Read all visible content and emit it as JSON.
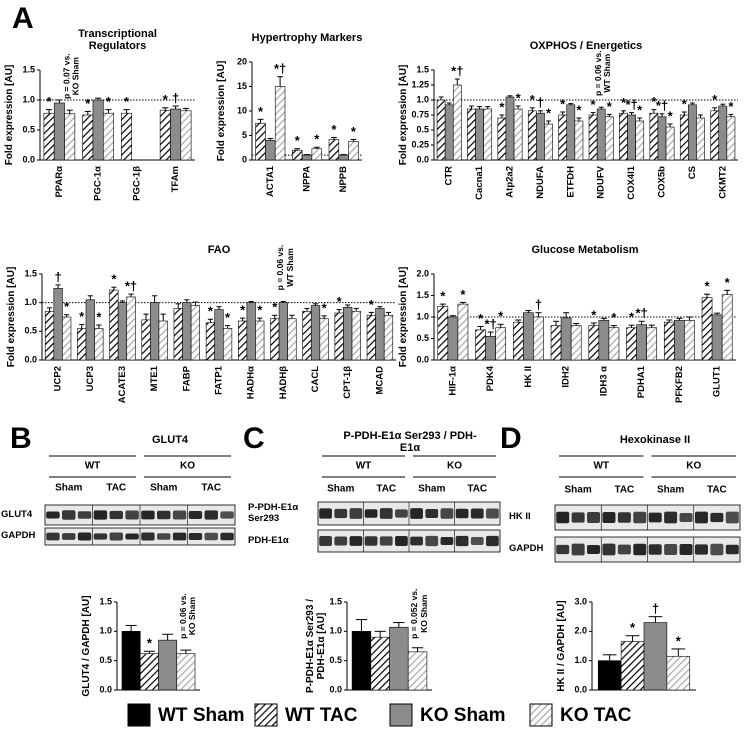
{
  "panels": [
    "A",
    "B",
    "C",
    "D"
  ],
  "legend": [
    {
      "name": "WT Sham",
      "color": "#000000",
      "hatch": false
    },
    {
      "name": "WT TAC",
      "color": "#000000",
      "hatch": true
    },
    {
      "name": "KO Sham",
      "color": "#8c8c8c",
      "hatch": false
    },
    {
      "name": "KO TAC",
      "color": "#a8a8a8",
      "hatch": true
    }
  ],
  "blots": [
    {
      "title": "GLUT4",
      "groups": [
        "WT",
        "KO"
      ],
      "conditions": [
        "Sham",
        "TAC",
        "Sham",
        "TAC"
      ],
      "rows": [
        "GLUT4",
        "GAPDH"
      ]
    },
    {
      "title": "P-PDH-E1α Ser293 / PDH-E1α",
      "groups": [
        "WT",
        "KO"
      ],
      "conditions": [
        "Sham",
        "TAC",
        "Sham",
        "TAC"
      ],
      "rows": [
        "P-PDH-E1α Ser293",
        "PDH-E1α"
      ]
    },
    {
      "title": "Hexokinase II",
      "groups": [
        "WT",
        "KO"
      ],
      "conditions": [
        "Sham",
        "TAC",
        "Sham",
        "TAC"
      ],
      "rows": [
        "HK II",
        "GAPDH"
      ]
    }
  ],
  "chart_data": [
    {
      "type": "bar",
      "title": "Transcriptional Regulators",
      "ylabel": "Fold expression [AU]",
      "categories": [
        "PPARα",
        "PGC-1α",
        "PGC-1β",
        "TFAm"
      ],
      "ylim": [
        0,
        1.5
      ],
      "yticks": [
        {
          "value": 0,
          "label": "0.0"
        },
        {
          "value": 0.5,
          "label": "0.5"
        },
        {
          "value": 1,
          "label": "1.0"
        },
        1.5
      ],
      "reference_line": 1,
      "series": [
        {
          "values": [
            0.78,
            0.75,
            0.78,
            0.83
          ],
          "errors": [
            0.06,
            0.06,
            0.06,
            0.04
          ],
          "marks": [
            "*",
            "*",
            "*",
            "*"
          ]
        },
        {
          "values": [
            0.95,
            1.0,
            null,
            0.85
          ],
          "errors": [
            0.05,
            0.03,
            null,
            0.05
          ],
          "marks": [
            null,
            null,
            null,
            "†"
          ]
        },
        {
          "values": [
            0.77,
            0.78,
            null,
            0.82
          ],
          "errors": [
            0.06,
            0.06,
            null,
            0.04
          ],
          "marks": [
            "p = 0.07 vs. KO Sham",
            "*",
            null,
            null
          ]
        }
      ]
    },
    {
      "type": "bar",
      "title": "Hypertrophy Markers",
      "ylabel": "Fold expression [AU]",
      "categories": [
        "ACTA1",
        "NPPA",
        "NPPB"
      ],
      "ylim": [
        0,
        20
      ],
      "yticks": [
        0,
        5,
        10,
        15,
        20
      ],
      "reference_line": 1,
      "series": [
        {
          "values": [
            7.5,
            2.0,
            4.2
          ],
          "errors": [
            0.8,
            0.3,
            0.4
          ],
          "marks": [
            "*",
            "*",
            "*"
          ]
        },
        {
          "values": [
            4.0,
            1.0,
            1.0
          ],
          "errors": [
            0.4,
            0.1,
            0.1
          ],
          "marks": [
            null,
            null,
            null
          ]
        },
        {
          "values": [
            15,
            2.3,
            3.8
          ],
          "errors": [
            2.0,
            0.3,
            0.4
          ],
          "marks": [
            "*†",
            "*",
            "*"
          ]
        }
      ]
    },
    {
      "type": "bar",
      "title": "OXPHOS / Energetics",
      "ylabel": "Fold expression [AU]",
      "categories": [
        "CTR",
        "Cacna1",
        "Atp2a2",
        "NDUFA",
        "ETFDH",
        "NDUFV",
        "COX4I1",
        "COX5b",
        "CS",
        "CKMT2"
      ],
      "ylim": [
        0,
        1.5
      ],
      "yticks": [
        {
          "value": 0,
          "label": "0.0"
        },
        0.25,
        {
          "value": 0.5,
          "label": "0.5"
        },
        0.75,
        {
          "value": 1,
          "label": "1.0"
        },
        1.25,
        1.5
      ],
      "reference_line": 1,
      "series": [
        {
          "values": [
            1.0,
            0.85,
            0.7,
            0.82,
            0.75,
            0.75,
            0.78,
            0.78,
            0.75,
            0.82
          ],
          "errors": [
            0.05,
            0.05,
            0.05,
            0.05,
            0.05,
            0.04,
            0.04,
            0.06,
            0.05,
            0.05
          ],
          "marks": [
            null,
            null,
            "*",
            "*",
            "*",
            "*",
            "*",
            "*",
            "*",
            "*"
          ]
        },
        {
          "values": [
            0.92,
            0.85,
            1.05,
            0.78,
            0.92,
            0.85,
            0.75,
            0.72,
            0.92,
            0.9
          ],
          "errors": [
            0.03,
            0.04,
            0.02,
            0.04,
            0.02,
            0.03,
            0.04,
            0.05,
            0.03,
            0.03
          ],
          "marks": [
            null,
            null,
            null,
            "†",
            null,
            "p = 0.06 vs. WT Sham",
            "*†",
            "*†",
            null,
            null
          ]
        },
        {
          "values": [
            1.25,
            0.85,
            0.85,
            0.6,
            0.65,
            0.72,
            0.65,
            0.55,
            0.7,
            0.72
          ],
          "errors": [
            0.1,
            0.04,
            0.05,
            0.05,
            0.05,
            0.04,
            0.05,
            0.05,
            0.05,
            0.04
          ],
          "marks": [
            "*†",
            null,
            "*",
            "*",
            "*",
            "*",
            "*",
            "*",
            null,
            "*"
          ]
        }
      ]
    },
    {
      "type": "bar",
      "title": "FAO",
      "ylabel": "Fold expression [AU]",
      "categories": [
        "UCP2",
        "UCP3",
        "ACATE3",
        "MTE1",
        "FABP",
        "FATP1",
        "HADHα",
        "HADHβ",
        "CACL",
        "CPT-1β",
        "MCAD"
      ],
      "ylim": [
        0,
        1.5
      ],
      "yticks": [
        {
          "value": 0,
          "label": "0.0"
        },
        {
          "value": 0.5,
          "label": "0.5"
        },
        {
          "value": 1,
          "label": "1.0"
        },
        1.5
      ],
      "reference_line": 1,
      "series": [
        {
          "values": [
            0.85,
            0.55,
            1.22,
            0.7,
            0.9,
            0.65,
            0.68,
            0.72,
            0.85,
            0.82,
            0.78
          ],
          "errors": [
            0.06,
            0.07,
            0.05,
            0.1,
            0.08,
            0.06,
            0.05,
            0.06,
            0.05,
            0.06,
            0.05
          ],
          "marks": [
            null,
            "*",
            "*",
            null,
            null,
            "*",
            "*",
            "*",
            null,
            "*",
            "*"
          ]
        },
        {
          "values": [
            1.25,
            1.05,
            1.0,
            1.0,
            1.0,
            0.88,
            1.0,
            1.0,
            0.95,
            0.92,
            0.9
          ],
          "errors": [
            0.06,
            0.07,
            0.03,
            0.12,
            0.05,
            0.05,
            0.02,
            0.02,
            0.03,
            0.04,
            0.03
          ],
          "marks": [
            "†",
            null,
            null,
            null,
            null,
            null,
            null,
            "p = 0.06 vs. WT Sham",
            null,
            null,
            null
          ]
        },
        {
          "values": [
            0.75,
            0.55,
            1.1,
            0.68,
            0.95,
            0.55,
            0.68,
            0.72,
            0.72,
            0.85,
            0.78
          ],
          "errors": [
            0.04,
            0.06,
            0.05,
            0.12,
            0.06,
            0.05,
            0.05,
            0.06,
            0.05,
            0.05,
            0.05
          ],
          "marks": [
            "*",
            "*",
            "*†",
            null,
            null,
            "*",
            "*",
            null,
            "*",
            null,
            null
          ]
        }
      ]
    },
    {
      "type": "bar",
      "title": "Glucose Metabolism",
      "ylabel": "Fold expression [AU]",
      "categories": [
        "HIF-1α",
        "PDK4",
        "HK II",
        "IDH2",
        "IDH3 α",
        "PDHA1",
        "PFKFB2",
        "GLUT1"
      ],
      "ylim": [
        0,
        2
      ],
      "yticks": [
        {
          "value": 0,
          "label": "0.0"
        },
        {
          "value": 0.5,
          "label": "0.5"
        },
        {
          "value": 1,
          "label": "1.0"
        },
        1.5,
        {
          "value": 2,
          "label": "2.0"
        }
      ],
      "reference_line": 1,
      "series": [
        {
          "values": [
            1.25,
            0.7,
            0.88,
            0.8,
            0.8,
            0.75,
            0.88,
            1.45
          ],
          "errors": [
            0.05,
            0.08,
            0.05,
            0.1,
            0.06,
            0.06,
            0.05,
            0.08
          ],
          "marks": [
            "*",
            "*",
            null,
            null,
            "*",
            "*",
            null,
            "*"
          ]
        },
        {
          "values": [
            1.0,
            0.55,
            1.1,
            0.98,
            0.92,
            0.82,
            0.92,
            1.05
          ],
          "errors": [
            0.03,
            0.1,
            0.05,
            0.12,
            0.05,
            0.08,
            0.05,
            0.04
          ],
          "marks": [
            null,
            "*†",
            null,
            null,
            null,
            "*†",
            null,
            null
          ]
        },
        {
          "values": [
            1.3,
            0.75,
            1.0,
            0.8,
            0.75,
            0.75,
            0.92,
            1.52
          ],
          "errors": [
            0.04,
            0.08,
            0.1,
            0.05,
            0.05,
            0.06,
            0.08,
            0.1
          ],
          "marks": [
            "*",
            "*",
            "†",
            null,
            "*",
            null,
            null,
            "*"
          ]
        }
      ]
    },
    {
      "type": "bar",
      "ylabel": "GLUT4 / GAPDH [AU]",
      "ylim": [
        0,
        1.5
      ],
      "yticks": [
        {
          "value": 0,
          "label": "0.0"
        },
        {
          "value": 0.5,
          "label": "0.5"
        },
        {
          "value": 1,
          "label": "1.0"
        },
        1.5
      ],
      "series": [
        {
          "values": [
            1.0
          ],
          "errors": [
            0.1
          ],
          "marks": [
            null
          ]
        },
        {
          "values": [
            0.62
          ],
          "errors": [
            0.04
          ],
          "marks": [
            "*"
          ]
        },
        {
          "values": [
            0.85
          ],
          "errors": [
            0.1
          ],
          "marks": [
            null
          ]
        },
        {
          "values": [
            0.62
          ],
          "errors": [
            0.06
          ],
          "marks": [
            "p = 0.06 vs. KO Sham"
          ]
        }
      ]
    },
    {
      "type": "bar",
      "ylabel": "P-PDH-E1α Ser293 / PDH-E1α [AU]",
      "ylim": [
        0,
        1.5
      ],
      "yticks": [
        {
          "value": 0,
          "label": "0.0"
        },
        {
          "value": 0.5,
          "label": "0.5"
        },
        {
          "value": 1,
          "label": "1.0"
        },
        1.5
      ],
      "series": [
        {
          "values": [
            1.0
          ],
          "errors": [
            0.2
          ],
          "marks": [
            null
          ]
        },
        {
          "values": [
            0.9
          ],
          "errors": [
            0.1
          ],
          "marks": [
            null
          ]
        },
        {
          "values": [
            1.07
          ],
          "errors": [
            0.08
          ],
          "marks": [
            null
          ]
        },
        {
          "values": [
            0.65
          ],
          "errors": [
            0.07
          ],
          "marks": [
            "p = 0.052 vs. KO Sham"
          ]
        }
      ]
    },
    {
      "type": "bar",
      "ylabel": "HK II / GAPDH [AU]",
      "ylim": [
        0,
        3
      ],
      "yticks": [
        {
          "value": 0,
          "label": "0.0"
        },
        {
          "value": 1,
          "label": "1.0"
        },
        {
          "value": 2,
          "label": "2.0"
        },
        {
          "value": 3,
          "label": "3.0"
        }
      ],
      "series": [
        {
          "values": [
            1.0
          ],
          "errors": [
            0.2
          ],
          "marks": [
            null
          ]
        },
        {
          "values": [
            1.65
          ],
          "errors": [
            0.2
          ],
          "marks": [
            "*"
          ]
        },
        {
          "values": [
            2.3
          ],
          "errors": [
            0.2
          ],
          "marks": [
            "†"
          ]
        },
        {
          "values": [
            1.15
          ],
          "errors": [
            0.25
          ],
          "marks": [
            "*"
          ]
        }
      ]
    }
  ]
}
